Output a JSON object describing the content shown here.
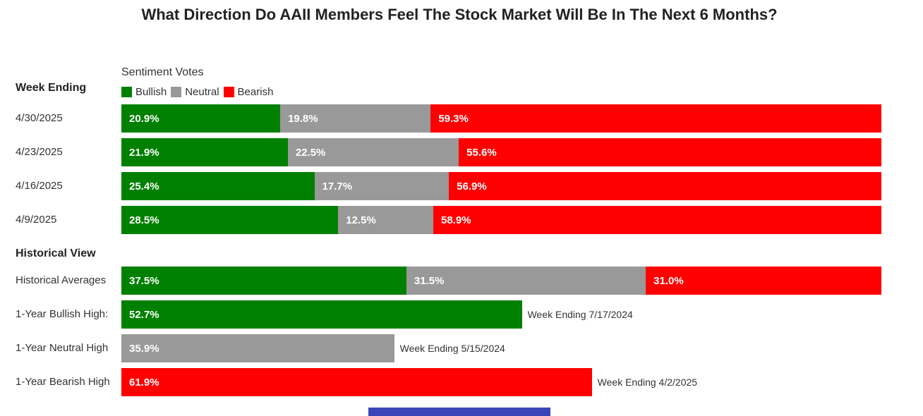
{
  "title": "What Direction Do AAII Members Feel The Stock Market Will Be In The Next 6 Months?",
  "chart_data": {
    "type": "bar",
    "orientation": "horizontal-stacked",
    "title": "What Direction Do AAII Members Feel The Stock Market Will Be In The Next 6 Months?",
    "subtitle": "Sentiment Votes",
    "legend": [
      {
        "name": "Bullish",
        "color": "#008000"
      },
      {
        "name": "Neutral",
        "color": "#999999"
      },
      {
        "name": "Bearish",
        "color": "#ff0000"
      }
    ],
    "weekly_header": "Week Ending",
    "weekly": [
      {
        "label": "4/30/2025",
        "bullish": 20.9,
        "neutral": 19.8,
        "bearish": 59.3
      },
      {
        "label": "4/23/2025",
        "bullish": 21.9,
        "neutral": 22.5,
        "bearish": 55.6
      },
      {
        "label": "4/16/2025",
        "bullish": 25.4,
        "neutral": 17.7,
        "bearish": 56.9
      },
      {
        "label": "4/9/2025",
        "bullish": 28.5,
        "neutral": 12.5,
        "bearish": 58.9
      }
    ],
    "historical_header": "Historical View",
    "historical_average": {
      "label": "Historical Averages",
      "bullish": 37.5,
      "neutral": 31.5,
      "bearish": 31.0
    },
    "highs": [
      {
        "label": "1-Year Bullish High:",
        "category": "bullish",
        "value": 52.7,
        "note": "Week Ending 7/17/2024"
      },
      {
        "label": "1-Year Neutral High",
        "category": "neutral",
        "value": 35.9,
        "note": "Week Ending 5/15/2024"
      },
      {
        "label": "1-Year Bearish High",
        "category": "bearish",
        "value": 61.9,
        "note": "Week Ending 4/2/2025"
      }
    ]
  }
}
